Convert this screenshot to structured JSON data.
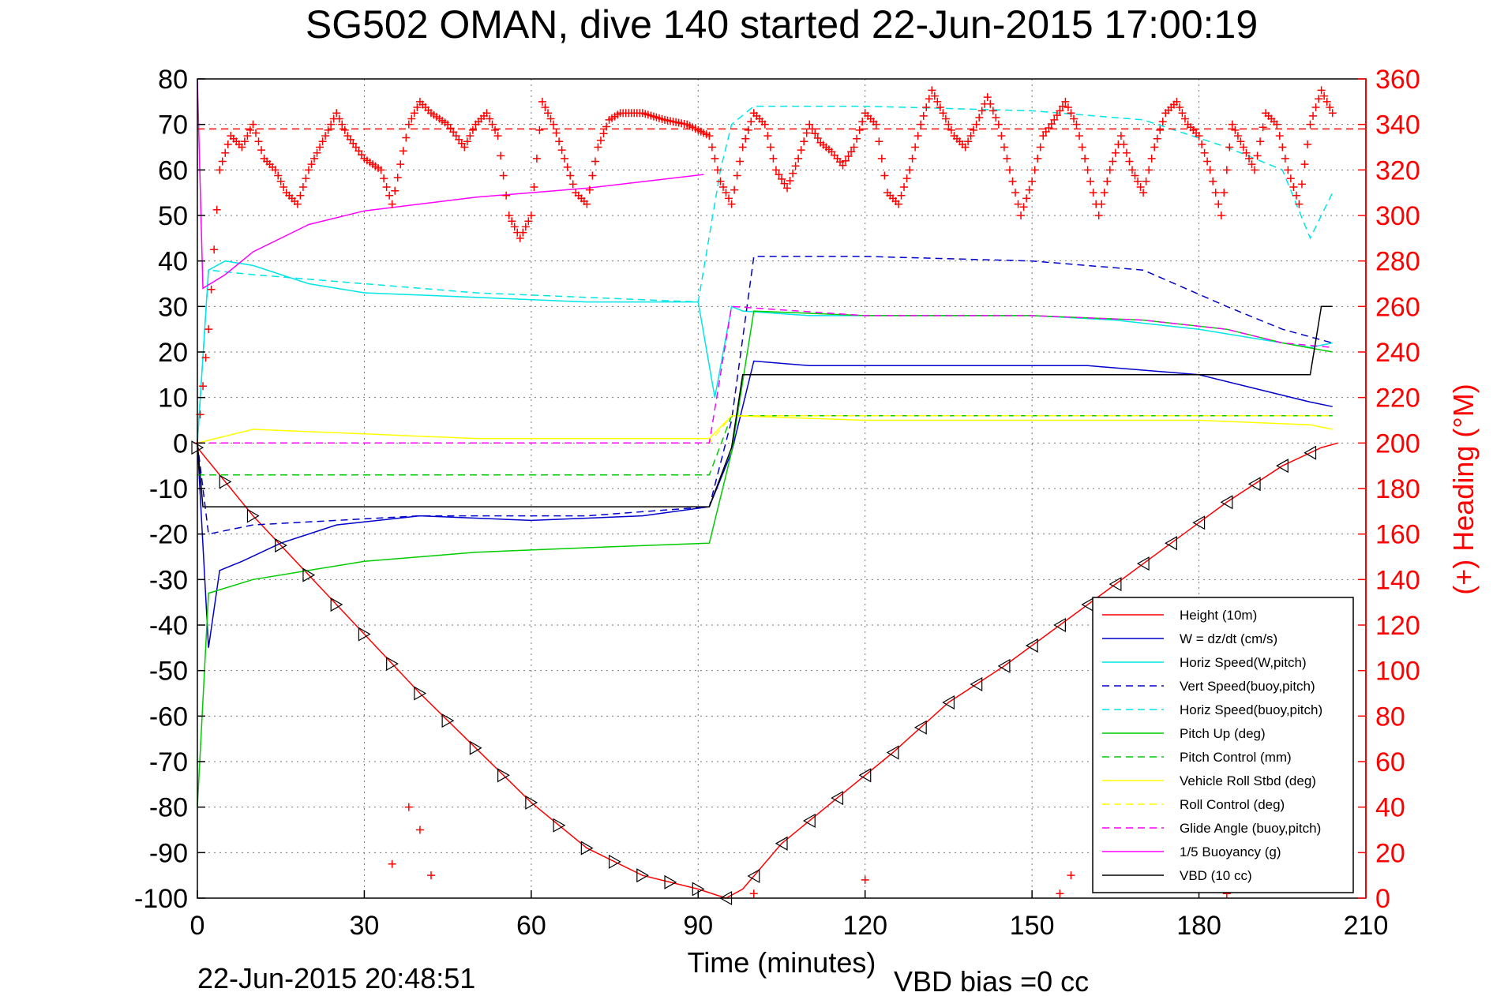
{
  "chart_data": {
    "type": "line",
    "title": "SG502 OMAN, dive 140 started 22-Jun-2015 17:00:19",
    "xlabel": "Time (minutes)",
    "ylabel_right": "(+) Heading (°M)",
    "xlim": [
      0,
      210
    ],
    "ylim": [
      -100,
      80
    ],
    "ylim_right": [
      0,
      360
    ],
    "x_ticks": [
      "0",
      "30",
      "60",
      "90",
      "120",
      "150",
      "180",
      "210"
    ],
    "y_ticks": [
      "80",
      "70",
      "60",
      "50",
      "40",
      "30",
      "20",
      "10",
      "0",
      "-10",
      "-20",
      "-30",
      "-40",
      "-50",
      "-60",
      "-70",
      "-80",
      "-90",
      "-100"
    ],
    "y_ticks_right": [
      "360",
      "340",
      "320",
      "300",
      "280",
      "260",
      "240",
      "220",
      "200",
      "180",
      "160",
      "140",
      "120",
      "100",
      "80",
      "60",
      "40",
      "20",
      "0"
    ],
    "grid": true,
    "legend_position": "bottom-right",
    "footer_date": "22-Jun-2015 20:48:51",
    "footer_bias": "VBD bias =0 cc",
    "series": [
      {
        "name": "Height (10m)",
        "color": "#ff0000",
        "dash": "solid",
        "points": [
          [
            0,
            -1
          ],
          [
            10,
            -16
          ],
          [
            20,
            -29
          ],
          [
            30,
            -42
          ],
          [
            40,
            -55
          ],
          [
            50,
            -67
          ],
          [
            60,
            -79
          ],
          [
            70,
            -89
          ],
          [
            80,
            -95
          ],
          [
            90,
            -98
          ],
          [
            95,
            -100
          ],
          [
            98,
            -98
          ],
          [
            105,
            -88
          ],
          [
            115,
            -78
          ],
          [
            125,
            -68
          ],
          [
            135,
            -57
          ],
          [
            145,
            -49
          ],
          [
            155,
            -40
          ],
          [
            165,
            -31
          ],
          [
            175,
            -22
          ],
          [
            185,
            -13
          ],
          [
            195,
            -5
          ],
          [
            202,
            -1
          ],
          [
            205,
            0
          ]
        ]
      },
      {
        "name": "W = dz/dt (cm/s)",
        "color": "#0000cc",
        "dash": "solid",
        "points": [
          [
            0,
            0
          ],
          [
            2,
            -45
          ],
          [
            4,
            -28
          ],
          [
            8,
            -26
          ],
          [
            15,
            -22
          ],
          [
            25,
            -18
          ],
          [
            40,
            -16
          ],
          [
            60,
            -17
          ],
          [
            80,
            -16
          ],
          [
            92,
            -14
          ],
          [
            96,
            -2
          ],
          [
            100,
            18
          ],
          [
            110,
            17
          ],
          [
            130,
            17
          ],
          [
            160,
            17
          ],
          [
            180,
            15
          ],
          [
            190,
            12
          ],
          [
            200,
            9
          ],
          [
            204,
            8
          ]
        ]
      },
      {
        "name": "Horiz Speed(W,pitch)",
        "color": "#00e5e5",
        "dash": "solid",
        "points": [
          [
            0,
            0
          ],
          [
            2,
            38
          ],
          [
            5,
            40
          ],
          [
            10,
            39
          ],
          [
            20,
            35
          ],
          [
            30,
            33
          ],
          [
            50,
            32
          ],
          [
            70,
            31
          ],
          [
            90,
            31
          ],
          [
            93,
            10
          ],
          [
            96,
            30
          ],
          [
            98,
            29
          ],
          [
            110,
            28
          ],
          [
            130,
            28
          ],
          [
            150,
            28
          ],
          [
            165,
            27
          ],
          [
            180,
            25
          ],
          [
            190,
            23
          ],
          [
            200,
            21
          ],
          [
            204,
            22
          ]
        ]
      },
      {
        "name": "Vert Speed(buoy,pitch)",
        "color": "#0000cc",
        "dash": "dashed",
        "points": [
          [
            0,
            0
          ],
          [
            2,
            -20
          ],
          [
            10,
            -18
          ],
          [
            40,
            -16
          ],
          [
            70,
            -16
          ],
          [
            92,
            -14
          ],
          [
            96,
            5
          ],
          [
            100,
            41
          ],
          [
            120,
            41
          ],
          [
            150,
            40
          ],
          [
            170,
            38
          ],
          [
            185,
            30
          ],
          [
            195,
            25
          ],
          [
            204,
            22
          ]
        ]
      },
      {
        "name": "Horiz Speed(buoy,pitch)",
        "color": "#00e5e5",
        "dash": "dashed",
        "points": [
          [
            0,
            0
          ],
          [
            2,
            38
          ],
          [
            10,
            37
          ],
          [
            50,
            33
          ],
          [
            90,
            31
          ],
          [
            94,
            60
          ],
          [
            96,
            70
          ],
          [
            100,
            74
          ],
          [
            120,
            74
          ],
          [
            150,
            73
          ],
          [
            170,
            71
          ],
          [
            185,
            65
          ],
          [
            195,
            60
          ],
          [
            200,
            45
          ],
          [
            204,
            55
          ]
        ]
      },
      {
        "name": "Pitch Up (deg)",
        "color": "#00cc00",
        "dash": "solid",
        "points": [
          [
            0,
            -80
          ],
          [
            2,
            -33
          ],
          [
            10,
            -30
          ],
          [
            30,
            -26
          ],
          [
            50,
            -24
          ],
          [
            70,
            -23
          ],
          [
            92,
            -22
          ],
          [
            96,
            -2
          ],
          [
            100,
            29
          ],
          [
            120,
            28
          ],
          [
            150,
            28
          ],
          [
            170,
            27
          ],
          [
            185,
            25
          ],
          [
            195,
            22
          ],
          [
            204,
            20
          ]
        ]
      },
      {
        "name": "Pitch Control (mm)",
        "color": "#00cc00",
        "dash": "dashed",
        "points": [
          [
            0,
            -7
          ],
          [
            92,
            -7
          ],
          [
            96,
            6
          ],
          [
            204,
            6
          ]
        ]
      },
      {
        "name": "Vehicle Roll Stbd (deg)",
        "color": "#ffff00",
        "dash": "solid",
        "points": [
          [
            0,
            0
          ],
          [
            10,
            3
          ],
          [
            30,
            2
          ],
          [
            50,
            1
          ],
          [
            70,
            1
          ],
          [
            92,
            1
          ],
          [
            96,
            6
          ],
          [
            120,
            5
          ],
          [
            150,
            5
          ],
          [
            180,
            5
          ],
          [
            200,
            4
          ],
          [
            204,
            3
          ]
        ]
      },
      {
        "name": "Roll Control (deg)",
        "color": "#ffff00",
        "dash": "dashed",
        "points": [
          [
            0,
            0
          ],
          [
            92,
            0
          ],
          [
            96,
            6
          ],
          [
            204,
            6
          ]
        ]
      },
      {
        "name": "Glide Angle (buoy,pitch)",
        "color": "#ff00ff",
        "dash": "dashed",
        "points": [
          [
            0,
            0
          ],
          [
            92,
            0
          ],
          [
            96,
            30
          ],
          [
            120,
            28
          ],
          [
            150,
            28
          ],
          [
            170,
            27
          ],
          [
            185,
            25
          ],
          [
            195,
            22
          ],
          [
            204,
            21
          ]
        ]
      },
      {
        "name": "1/5 Buoyancy (g)",
        "color": "#ff00ff",
        "dash": "solid",
        "points": [
          [
            0,
            80
          ],
          [
            1,
            34
          ],
          [
            5,
            37
          ],
          [
            10,
            42
          ],
          [
            20,
            48
          ],
          [
            30,
            51
          ],
          [
            50,
            54
          ],
          [
            70,
            56
          ],
          [
            91,
            59
          ]
        ]
      },
      {
        "name": "VBD (10 cc)",
        "color": "#000000",
        "dash": "solid",
        "points": [
          [
            0,
            0
          ],
          [
            1,
            -14
          ],
          [
            30,
            -14
          ],
          [
            60,
            -14
          ],
          [
            92,
            -14
          ],
          [
            96,
            -1
          ],
          [
            98,
            15
          ],
          [
            150,
            15
          ],
          [
            200,
            15
          ],
          [
            202,
            30
          ],
          [
            204,
            30
          ]
        ]
      }
    ],
    "heading": {
      "name": "(+) Heading",
      "color": "#ff0000",
      "marker": "+",
      "reference": 338,
      "points": [
        [
          0,
          200
        ],
        [
          2,
          250
        ],
        [
          4,
          320
        ],
        [
          6,
          335
        ],
        [
          8,
          330
        ],
        [
          10,
          340
        ],
        [
          12,
          325
        ],
        [
          14,
          320
        ],
        [
          16,
          310
        ],
        [
          18,
          305
        ],
        [
          20,
          320
        ],
        [
          22,
          330
        ],
        [
          25,
          345
        ],
        [
          27,
          335
        ],
        [
          30,
          325
        ],
        [
          33,
          320
        ],
        [
          35,
          305
        ],
        [
          38,
          340
        ],
        [
          40,
          350
        ],
        [
          42,
          345
        ],
        [
          45,
          340
        ],
        [
          48,
          330
        ],
        [
          50,
          340
        ],
        [
          52,
          345
        ],
        [
          54,
          335
        ],
        [
          56,
          300
        ],
        [
          58,
          290
        ],
        [
          60,
          300
        ],
        [
          62,
          350
        ],
        [
          64,
          340
        ],
        [
          66,
          325
        ],
        [
          68,
          310
        ],
        [
          70,
          305
        ],
        [
          72,
          330
        ],
        [
          74,
          342
        ],
        [
          76,
          345
        ],
        [
          80,
          345
        ],
        [
          84,
          342
        ],
        [
          88,
          340
        ],
        [
          92,
          335
        ],
        [
          94,
          315
        ],
        [
          96,
          305
        ],
        [
          98,
          330
        ],
        [
          100,
          345
        ],
        [
          102,
          340
        ],
        [
          104,
          320
        ],
        [
          106,
          312
        ],
        [
          108,
          325
        ],
        [
          110,
          340
        ],
        [
          112,
          332
        ],
        [
          114,
          328
        ],
        [
          116,
          322
        ],
        [
          118,
          330
        ],
        [
          120,
          345
        ],
        [
          122,
          340
        ],
        [
          124,
          310
        ],
        [
          126,
          305
        ],
        [
          128,
          320
        ],
        [
          130,
          340
        ],
        [
          132,
          355
        ],
        [
          134,
          345
        ],
        [
          136,
          335
        ],
        [
          138,
          330
        ],
        [
          140,
          340
        ],
        [
          142,
          352
        ],
        [
          144,
          340
        ],
        [
          146,
          320
        ],
        [
          148,
          300
        ],
        [
          150,
          315
        ],
        [
          152,
          335
        ],
        [
          154,
          342
        ],
        [
          156,
          350
        ],
        [
          158,
          340
        ],
        [
          160,
          320
        ],
        [
          162,
          300
        ],
        [
          164,
          320
        ],
        [
          166,
          335
        ],
        [
          168,
          320
        ],
        [
          170,
          310
        ],
        [
          172,
          330
        ],
        [
          174,
          345
        ],
        [
          176,
          350
        ],
        [
          178,
          340
        ],
        [
          180,
          335
        ],
        [
          182,
          320
        ],
        [
          184,
          300
        ],
        [
          186,
          340
        ],
        [
          188,
          330
        ],
        [
          190,
          320
        ],
        [
          192,
          345
        ],
        [
          194,
          340
        ],
        [
          196,
          320
        ],
        [
          198,
          305
        ],
        [
          200,
          340
        ],
        [
          202,
          355
        ],
        [
          204,
          345
        ]
      ],
      "low_points": [
        [
          35,
          15
        ],
        [
          38,
          40
        ],
        [
          40,
          30
        ],
        [
          42,
          10
        ],
        [
          100,
          2
        ],
        [
          120,
          8
        ],
        [
          155,
          2
        ],
        [
          157,
          10
        ],
        [
          185,
          2
        ]
      ]
    }
  }
}
